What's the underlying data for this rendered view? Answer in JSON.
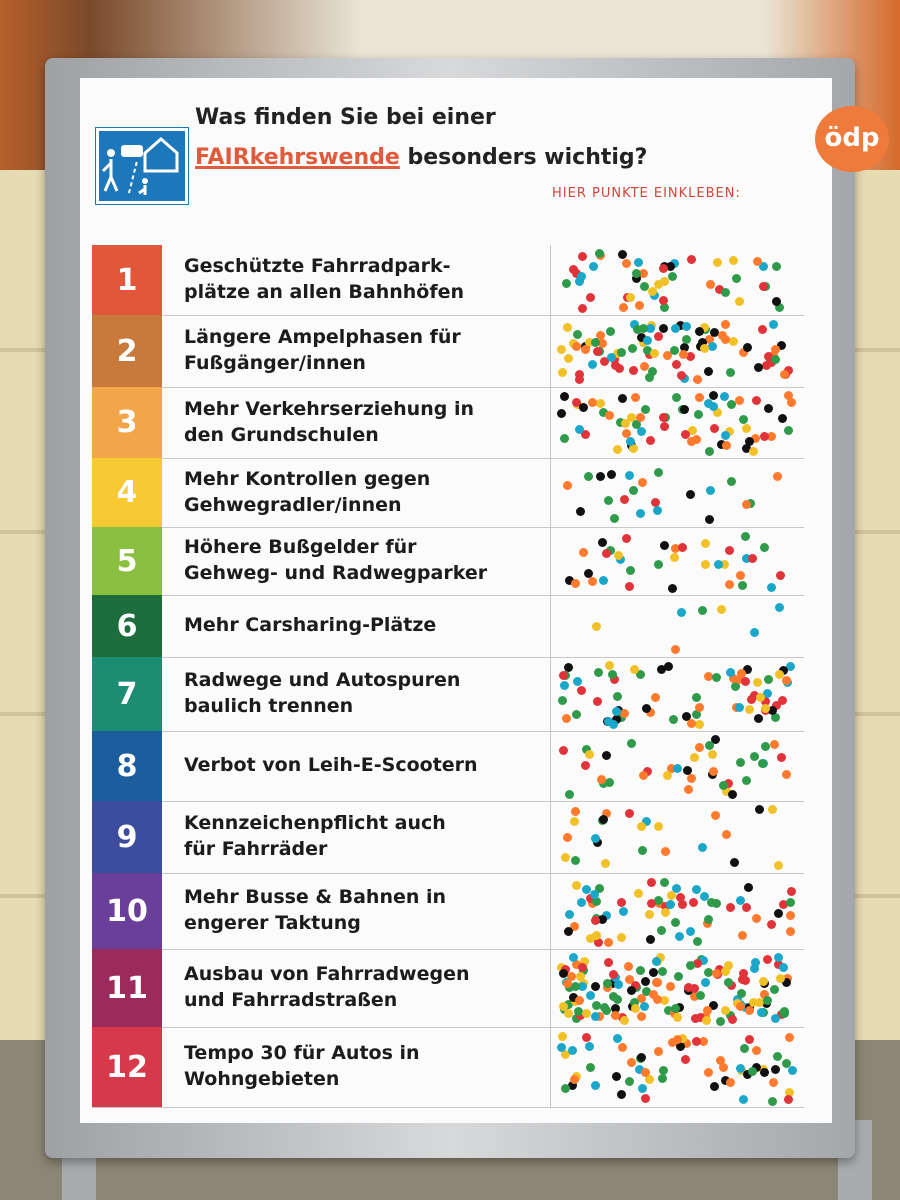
{
  "logo": "ödp",
  "heading": {
    "line1": "Was finden Sie bei einer",
    "accent": "FAIRkehrswende",
    "rest": " besonders wichtig?"
  },
  "sticker_label": "HIER PUNKTE EINKLEBEN:",
  "colors": {
    "accent": "#e05a3c",
    "dots": [
      "#2e9a4a",
      "#f2c128",
      "#e0343a",
      "#1aa7c9",
      "#ff7a2c",
      "#111111"
    ]
  },
  "rows": [
    {
      "num": "1",
      "text": "Geschützte Fahrradpark-\nplätze an allen Bahnhöfen",
      "color": "#e2573a",
      "dots": 48
    },
    {
      "num": "2",
      "text": "Längere Ampelphasen für\nFußgänger/innen",
      "color": "#c77a3c",
      "dots": 88
    },
    {
      "num": "3",
      "text": "Mehr Verkehrserziehung in\nden Grundschulen",
      "color": "#f1a64a",
      "dots": 66
    },
    {
      "num": "4",
      "text": "Mehr Kontrollen gegen\nGehwegradler/innen",
      "color": "#f6c935",
      "dots": 22
    },
    {
      "num": "5",
      "text": "Höhere Bußgelder für\nGehweg- und Radwegparker",
      "color": "#8bbf3f",
      "dots": 34
    },
    {
      "num": "6",
      "text": "Mehr Carsharing-Plätze",
      "color": "#1e6d3c",
      "dots": 7
    },
    {
      "num": "7",
      "text": "Radwege und Autospuren\nbaulich trennen",
      "color": "#1c8c73",
      "dots": 68
    },
    {
      "num": "8",
      "text": "Verbot von Leih-E-Scootern",
      "color": "#1c5d9d",
      "dots": 38
    },
    {
      "num": "9",
      "text": "Kennzeichenpflicht auch\nfür Fahrräder",
      "color": "#3c4d9d",
      "dots": 24
    },
    {
      "num": "10",
      "text": "Mehr Busse & Bahnen in\nengerer Taktung",
      "color": "#6a3f9a",
      "dots": 62
    },
    {
      "num": "11",
      "text": "Ausbau von Fahrradwegen\nund Fahrradstraßen",
      "color": "#9b2b5c",
      "dots": 140
    },
    {
      "num": "12",
      "text": "Tempo 30 für Autos in\nWohngebieten",
      "color": "#d63a4a",
      "dots": 62
    }
  ]
}
